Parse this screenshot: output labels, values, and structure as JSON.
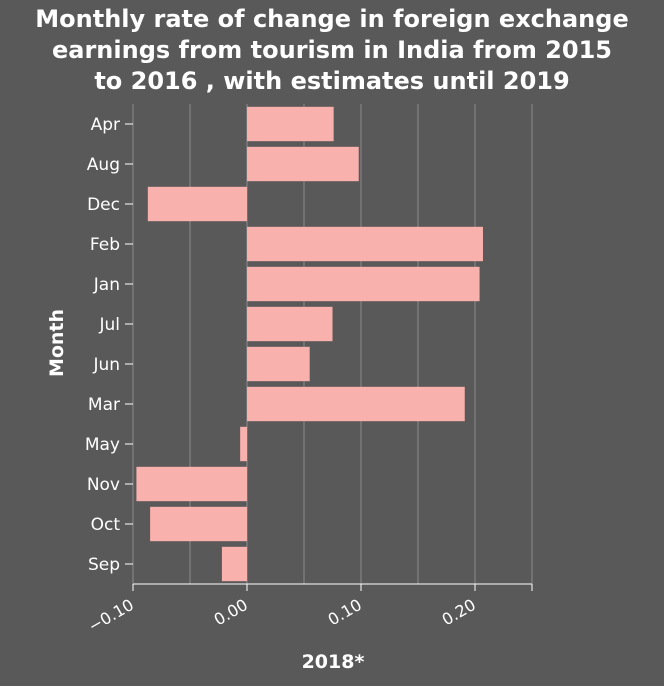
{
  "chart_data": {
    "type": "bar",
    "orientation": "horizontal",
    "title_lines": [
      "Monthly rate of change in foreign exchange",
      "earnings from tourism in India from 2015",
      "to 2016 , with estimates until 2019"
    ],
    "xlabel": "2018*",
    "ylabel": "Month",
    "categories": [
      "Apr",
      "Aug",
      "Dec",
      "Feb",
      "Jan",
      "Jul",
      "Jun",
      "Mar",
      "May",
      "Nov",
      "Oct",
      "Sep"
    ],
    "values": [
      0.076,
      0.098,
      -0.087,
      0.207,
      0.204,
      0.075,
      0.055,
      0.191,
      -0.006,
      -0.097,
      -0.085,
      -0.022
    ],
    "xlim": [
      -0.1,
      0.25
    ],
    "xticks": [
      -0.1,
      -0.05,
      0.0,
      0.05,
      0.1,
      0.15,
      0.2,
      0.25
    ],
    "xtick_labels": [
      "−0.10",
      "0.00",
      "0.10",
      "0.20"
    ],
    "labeled_xticks": [
      -0.1,
      0.0,
      0.1,
      0.2
    ],
    "grid": "vertical",
    "bar_color": "#f9b1ad",
    "grid_color": "#8c8c8c"
  }
}
